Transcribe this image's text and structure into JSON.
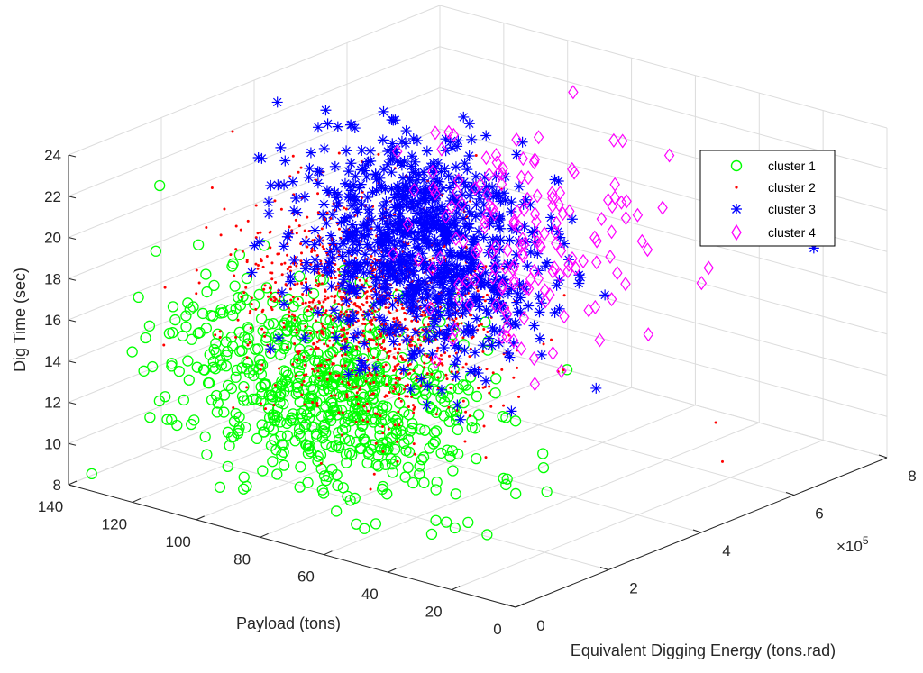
{
  "chart_data": {
    "type": "scatter",
    "projection": "3d",
    "xlabel": "Payload (tons)",
    "ylabel": "Equivalent Digging Energy (tons.rad)",
    "zlabel": "Dig Time (sec)",
    "y_exponent_label": "×10",
    "y_exponent_power": "5",
    "xlim": [
      0,
      140
    ],
    "ylim": [
      0,
      800000
    ],
    "zlim": [
      8,
      24
    ],
    "x_ticks": [
      "0",
      "20",
      "40",
      "60",
      "80",
      "100",
      "120",
      "140"
    ],
    "y_ticks": [
      "0",
      "2",
      "4",
      "6",
      "8"
    ],
    "z_ticks": [
      "8",
      "10",
      "12",
      "14",
      "16",
      "18",
      "20",
      "22",
      "24"
    ],
    "grid": true,
    "legend_position": "top-right",
    "series": [
      {
        "name": "cluster 1",
        "marker": "circle",
        "color": "#00ff00",
        "count": 700,
        "center": {
          "x": 80,
          "y": 100000,
          "z": 14
        },
        "spread": {
          "x": 25,
          "y": 60000,
          "z": 2.4
        }
      },
      {
        "name": "cluster 2",
        "marker": "dot",
        "color": "#ff0000",
        "count": 1100,
        "center": {
          "x": 85,
          "y": 230000,
          "z": 16.5
        },
        "spread": {
          "x": 18,
          "y": 70000,
          "z": 2.6
        }
      },
      {
        "name": "cluster 3",
        "marker": "asterisk",
        "color": "#0000ff",
        "count": 900,
        "center": {
          "x": 85,
          "y": 340000,
          "z": 18.3
        },
        "spread": {
          "x": 17,
          "y": 70000,
          "z": 2.5
        }
      },
      {
        "name": "cluster 4",
        "marker": "diamond",
        "color": "#ff00ff",
        "count": 160,
        "center": {
          "x": 70,
          "y": 460000,
          "z": 18.5
        },
        "spread": {
          "x": 20,
          "y": 80000,
          "z": 3
        }
      }
    ],
    "outliers": [
      {
        "series": "cluster 3",
        "x": 20,
        "y": 780000,
        "z": 17.5
      },
      {
        "series": "cluster 4",
        "x": 75,
        "y": 640000,
        "z": 24
      },
      {
        "series": "cluster 2",
        "x": 10,
        "y": 500000,
        "z": 12
      },
      {
        "series": "cluster 2",
        "x": 5,
        "y": 480000,
        "z": 10.5
      }
    ]
  }
}
